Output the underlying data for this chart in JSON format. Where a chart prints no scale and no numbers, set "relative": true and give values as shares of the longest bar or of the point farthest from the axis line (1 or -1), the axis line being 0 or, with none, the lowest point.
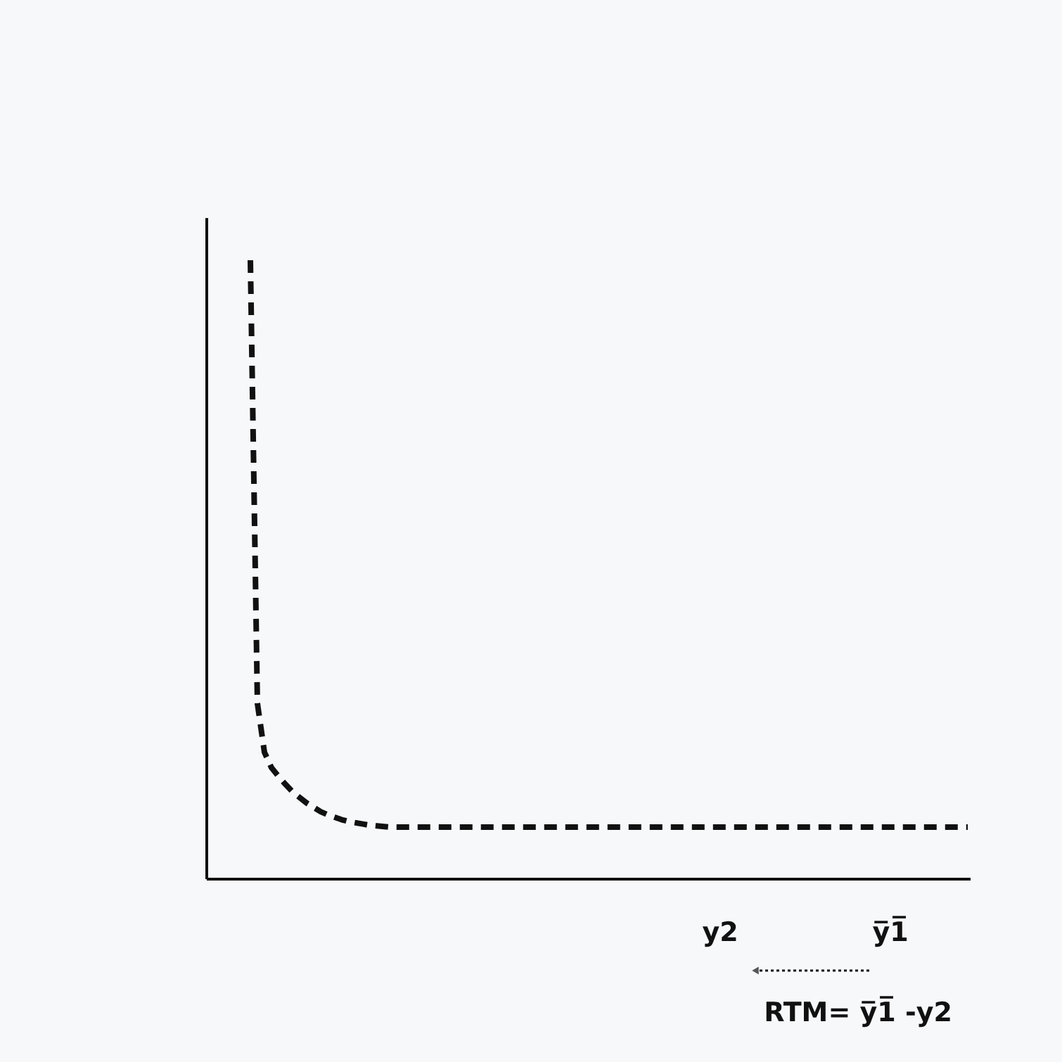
{
  "chart_data": {
    "type": "line",
    "relative": true,
    "line_style": "dashed",
    "marker": "none",
    "grid": false,
    "categories": [
      null,
      null,
      null,
      null,
      null,
      null,
      null,
      null,
      null,
      null,
      null,
      null,
      null,
      null,
      null,
      null,
      null,
      null,
      null,
      null,
      null,
      null,
      null,
      null,
      null,
      null,
      null,
      null,
      null,
      null,
      null,
      null,
      null,
      null,
      null,
      null,
      null,
      null,
      null,
      null,
      null,
      null,
      null,
      null,
      null,
      null,
      null,
      null,
      null,
      null,
      null,
      null,
      null,
      null,
      null,
      null,
      null,
      null,
      null,
      null,
      null,
      null,
      null,
      null,
      null,
      null,
      null,
      null,
      null,
      null,
      null,
      null,
      null,
      null,
      null,
      null,
      null,
      null,
      null,
      null,
      null,
      null,
      null,
      null,
      null,
      null,
      null,
      null,
      null,
      null,
      null,
      null,
      null,
      null,
      null,
      null,
      null,
      null,
      null,
      null,
      null,
      null,
      null
    ],
    "series": [
      {
        "color": "#111111",
        "values": [
          1.0,
          0.284,
          0.205,
          0.18,
          0.166,
          0.153,
          0.141,
          0.132,
          0.123,
          0.116,
          0.109,
          0.104,
          0.1,
          0.096,
          0.093,
          0.091,
          0.089,
          0.087,
          0.086,
          0.085,
          0.084,
          0.084,
          0.084,
          0.084,
          0.084,
          0.084,
          0.084,
          0.084,
          0.084,
          0.084,
          0.084,
          0.084,
          0.084,
          0.084,
          0.084,
          0.084,
          0.084,
          0.084,
          0.084,
          0.084,
          0.084,
          0.084,
          0.084,
          0.084,
          0.084,
          0.084,
          0.084,
          0.084,
          0.084,
          0.084,
          0.084,
          0.084,
          0.084,
          0.084,
          0.084,
          0.084,
          0.084,
          0.084,
          0.084,
          0.084,
          0.084,
          0.084,
          0.084,
          0.084,
          0.084,
          0.084,
          0.084,
          0.084,
          0.084,
          0.084,
          0.084,
          0.084,
          0.084,
          0.084,
          0.084,
          0.084,
          0.084,
          0.084,
          0.084,
          0.084,
          0.084,
          0.084,
          0.084,
          0.084,
          0.084,
          0.084,
          0.084,
          0.084,
          0.084,
          0.084,
          0.084,
          0.084,
          0.084,
          0.084,
          0.084,
          0.084,
          0.084,
          0.084,
          0.084,
          0.084,
          0.084,
          0.084,
          0.084
        ]
      }
    ],
    "annotations": [
      "y2",
      "y̅1̅",
      "RTM= y̅1̅ -y2"
    ]
  }
}
